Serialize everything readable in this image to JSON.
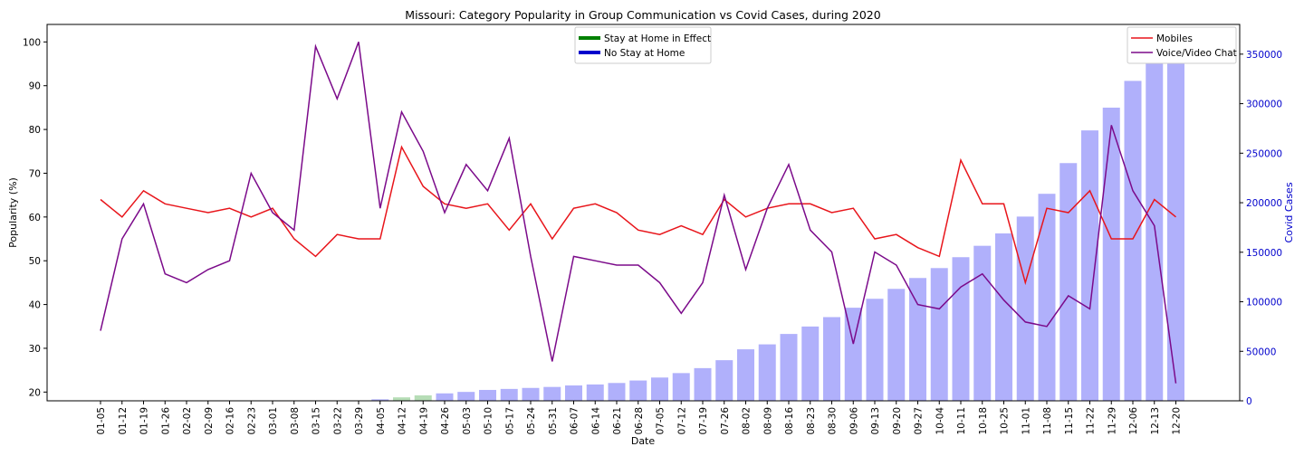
{
  "chart_data": {
    "type": "line",
    "title": "Missouri: Category Popularity in Group Communication vs Covid Cases, during 2020",
    "xlabel": "Date",
    "ylabel": "Popularity (%)",
    "y2label": "Covid Cases",
    "ylim": [
      18,
      104
    ],
    "y2lim": [
      0,
      380000
    ],
    "yticks": [
      20,
      30,
      40,
      50,
      60,
      70,
      80,
      90,
      100
    ],
    "y2ticks": [
      0,
      50000,
      100000,
      150000,
      200000,
      250000,
      300000,
      350000
    ],
    "categories": [
      "01-05",
      "01-12",
      "01-19",
      "01-26",
      "02-02",
      "02-09",
      "02-16",
      "02-23",
      "03-01",
      "03-08",
      "03-15",
      "03-22",
      "03-29",
      "04-05",
      "04-12",
      "04-19",
      "04-26",
      "05-03",
      "05-10",
      "05-17",
      "05-24",
      "05-31",
      "06-07",
      "06-14",
      "06-21",
      "06-28",
      "07-05",
      "07-12",
      "07-19",
      "07-26",
      "08-02",
      "08-09",
      "08-16",
      "08-23",
      "08-30",
      "09-06",
      "09-13",
      "09-20",
      "09-27",
      "10-04",
      "10-11",
      "10-18",
      "10-25",
      "11-01",
      "11-08",
      "11-15",
      "11-22",
      "11-29",
      "12-06",
      "12-13",
      "12-20"
    ],
    "series": [
      {
        "name": "Mobiles",
        "color": "#e8151b",
        "values": [
          64,
          60,
          66,
          63,
          62,
          61,
          62,
          60,
          62,
          55,
          51,
          56,
          55,
          55,
          76,
          67,
          63,
          62,
          63,
          57,
          63,
          55,
          62,
          63,
          61,
          57,
          56,
          58,
          56,
          64,
          60,
          62,
          63,
          63,
          61,
          62,
          55,
          56,
          53,
          51,
          73,
          63,
          63,
          45,
          62,
          61,
          66,
          55,
          55,
          64,
          60
        ]
      },
      {
        "name": "Voice/Video Chat",
        "color": "#7b0a8a",
        "values": [
          34,
          55,
          63,
          47,
          45,
          48,
          50,
          70,
          61,
          57,
          99,
          87,
          100,
          62,
          84,
          75,
          61,
          72,
          66,
          78,
          51,
          27,
          51,
          50,
          49,
          49,
          45,
          38,
          45,
          65,
          48,
          62,
          72,
          57,
          52,
          31,
          52,
          49,
          40,
          39,
          44,
          47,
          41,
          36,
          35,
          42,
          39,
          81,
          66,
          58,
          22
        ]
      }
    ],
    "bars": {
      "name": "Covid Cases",
      "color": "#b0b0fb",
      "stay_home_color": "#b6ddb6",
      "values": [
        0,
        0,
        0,
        0,
        0,
        0,
        0,
        0,
        0,
        0,
        0,
        50,
        300,
        1500,
        3500,
        5500,
        7500,
        9000,
        11000,
        12000,
        13000,
        14000,
        15500,
        16500,
        18000,
        20500,
        23500,
        28000,
        33000,
        41000,
        52000,
        57000,
        67500,
        75000,
        84500,
        94000,
        103000,
        113000,
        124000,
        134000,
        145000,
        156500,
        169000,
        186000,
        209000,
        240000,
        273000,
        296000,
        323000,
        346000,
        366000
      ],
      "stay_home": [
        false,
        false,
        false,
        false,
        false,
        false,
        false,
        false,
        false,
        false,
        false,
        false,
        false,
        false,
        true,
        true,
        false,
        false,
        false,
        false,
        false,
        false,
        false,
        false,
        false,
        false,
        false,
        false,
        false,
        false,
        false,
        false,
        false,
        false,
        false,
        false,
        false,
        false,
        false,
        false,
        false,
        false,
        false,
        false,
        false,
        false,
        false,
        false,
        false,
        false,
        false
      ]
    },
    "legend_left": {
      "placement": "top-center",
      "entries": [
        {
          "label": "Stay at Home in Effect",
          "color": "#008000"
        },
        {
          "label": "No Stay at Home",
          "color": "#0000cc"
        }
      ]
    },
    "legend_right": {
      "placement": "top-right",
      "entries": [
        {
          "label": "Mobiles",
          "color": "#e8151b"
        },
        {
          "label": "Voice/Video Chat",
          "color": "#7b0a8a"
        }
      ]
    },
    "grid": false
  }
}
